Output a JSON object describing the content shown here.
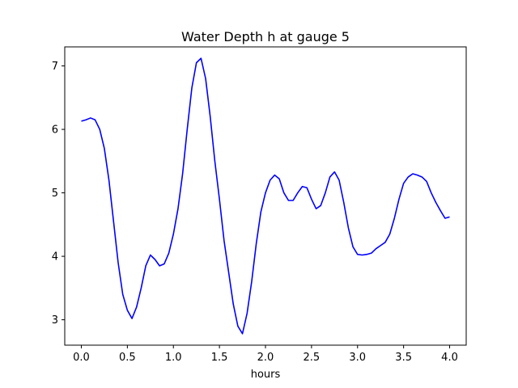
{
  "chart_data": {
    "type": "line",
    "title": "Water Depth h at gauge 5",
    "xlabel": "hours",
    "ylabel": "",
    "xlim": [
      -0.18,
      4.18
    ],
    "ylim": [
      2.6,
      7.3
    ],
    "xticks": [
      0.0,
      0.5,
      1.0,
      1.5,
      2.0,
      2.5,
      3.0,
      3.5,
      4.0
    ],
    "xtick_labels": [
      "0.0",
      "0.5",
      "1.0",
      "1.5",
      "2.0",
      "2.5",
      "3.0",
      "3.5",
      "4.0"
    ],
    "yticks": [
      3,
      4,
      5,
      6,
      7
    ],
    "ytick_labels": [
      "3",
      "4",
      "5",
      "6",
      "7"
    ],
    "grid": false,
    "series": [
      {
        "color": "#0000ff",
        "x": [
          0.0,
          0.05,
          0.1,
          0.15,
          0.2,
          0.25,
          0.3,
          0.35,
          0.4,
          0.45,
          0.5,
          0.55,
          0.6,
          0.65,
          0.7,
          0.75,
          0.8,
          0.85,
          0.9,
          0.95,
          1.0,
          1.05,
          1.1,
          1.15,
          1.2,
          1.25,
          1.3,
          1.35,
          1.4,
          1.45,
          1.5,
          1.55,
          1.6,
          1.65,
          1.7,
          1.75,
          1.8,
          1.85,
          1.9,
          1.95,
          2.0,
          2.05,
          2.1,
          2.15,
          2.2,
          2.25,
          2.3,
          2.35,
          2.4,
          2.45,
          2.5,
          2.55,
          2.6,
          2.65,
          2.7,
          2.75,
          2.8,
          2.85,
          2.9,
          2.95,
          3.0,
          3.05,
          3.1,
          3.15,
          3.2,
          3.25,
          3.3,
          3.35,
          3.4,
          3.45,
          3.5,
          3.55,
          3.6,
          3.65,
          3.7,
          3.75,
          3.8,
          3.85,
          3.9,
          3.95,
          4.0
        ],
        "y": [
          6.13,
          6.15,
          6.18,
          6.15,
          6.0,
          5.7,
          5.2,
          4.55,
          3.9,
          3.4,
          3.15,
          3.02,
          3.2,
          3.5,
          3.85,
          4.02,
          3.95,
          3.85,
          3.88,
          4.05,
          4.35,
          4.75,
          5.3,
          6.0,
          6.65,
          7.05,
          7.12,
          6.8,
          6.2,
          5.5,
          4.9,
          4.25,
          3.75,
          3.25,
          2.9,
          2.78,
          3.1,
          3.6,
          4.2,
          4.7,
          5.0,
          5.2,
          5.28,
          5.22,
          5.0,
          4.88,
          4.88,
          5.0,
          5.1,
          5.08,
          4.9,
          4.75,
          4.8,
          5.0,
          5.25,
          5.33,
          5.2,
          4.85,
          4.45,
          4.15,
          4.03,
          4.02,
          4.03,
          4.05,
          4.12,
          4.17,
          4.22,
          4.35,
          4.6,
          4.9,
          5.15,
          5.25,
          5.3,
          5.28,
          5.25,
          5.18,
          5.0,
          4.85,
          4.72,
          4.6,
          4.62
        ]
      }
    ]
  }
}
